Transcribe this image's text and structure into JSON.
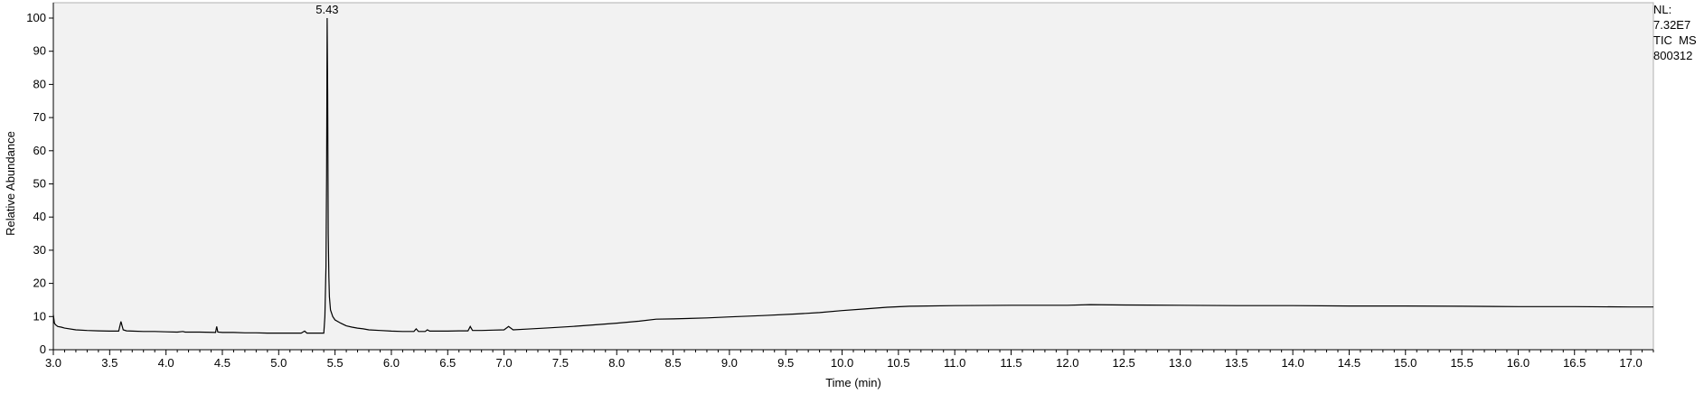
{
  "chart_data": {
    "type": "line",
    "title": "",
    "xlabel": "Time (min)",
    "ylabel": "Relative Abundance",
    "xlim": [
      3.0,
      17.2
    ],
    "ylim": [
      0,
      100
    ],
    "x_ticks": [
      "3.0",
      "3.5",
      "4.0",
      "4.5",
      "5.0",
      "5.5",
      "6.0",
      "6.5",
      "7.0",
      "7.5",
      "8.0",
      "8.5",
      "9.0",
      "9.5",
      "10.0",
      "10.5",
      "11.0",
      "11.5",
      "12.0",
      "12.5",
      "13.0",
      "13.5",
      "14.0",
      "14.5",
      "15.0",
      "15.5",
      "16.0",
      "16.5",
      "17.0"
    ],
    "y_ticks": [
      "0",
      "10",
      "20",
      "30",
      "40",
      "50",
      "60",
      "70",
      "80",
      "90",
      "100"
    ],
    "grid": false,
    "legend": "none",
    "peak_label": "5.43",
    "line_color": "#000000",
    "plot_background": "#f2f2f2",
    "series": [
      {
        "x": [
          3.0,
          3.01,
          3.02,
          3.04,
          3.07,
          3.1,
          3.2,
          3.3,
          3.4,
          3.5,
          3.58,
          3.6,
          3.62,
          3.65,
          3.7,
          3.8,
          3.9,
          4.0,
          4.1,
          4.15,
          4.17,
          4.3,
          4.44,
          4.45,
          4.46,
          4.5,
          4.6,
          4.7,
          4.8,
          4.9,
          5.0,
          5.1,
          5.2,
          5.23,
          5.25,
          5.3,
          5.35,
          5.4,
          5.41,
          5.42,
          5.425,
          5.43,
          5.435,
          5.44,
          5.445,
          5.45,
          5.46,
          5.48,
          5.5,
          5.55,
          5.6,
          5.65,
          5.7,
          5.75,
          5.8,
          5.9,
          6.0,
          6.1,
          6.2,
          6.22,
          6.24,
          6.3,
          6.32,
          6.34,
          6.4,
          6.5,
          6.6,
          6.68,
          6.7,
          6.72,
          6.8,
          6.9,
          7.0,
          7.04,
          7.08,
          7.2,
          7.4,
          7.6,
          7.8,
          8.0,
          8.2,
          8.35,
          8.5,
          8.8,
          9.0,
          9.3,
          9.6,
          9.8,
          10.0,
          10.2,
          10.4,
          10.6,
          11.0,
          11.5,
          12.0,
          12.2,
          12.5,
          13.0,
          13.5,
          14.0,
          14.5,
          15.0,
          15.5,
          16.0,
          16.5,
          17.0,
          17.2
        ],
        "y": [
          10.5,
          8.0,
          7.5,
          7.0,
          6.8,
          6.5,
          6.0,
          5.8,
          5.7,
          5.6,
          5.6,
          8.5,
          6.0,
          5.7,
          5.6,
          5.5,
          5.5,
          5.4,
          5.3,
          5.5,
          5.3,
          5.3,
          5.2,
          7.0,
          5.3,
          5.2,
          5.2,
          5.1,
          5.1,
          5.0,
          5.0,
          5.0,
          5.0,
          5.6,
          5.0,
          5.0,
          5.0,
          5.0,
          10.0,
          25.0,
          53.0,
          100.0,
          77.0,
          35.0,
          22.0,
          16.0,
          12.0,
          10.0,
          9.0,
          8.0,
          7.2,
          6.8,
          6.5,
          6.3,
          6.0,
          5.8,
          5.6,
          5.5,
          5.5,
          6.3,
          5.5,
          5.5,
          6.0,
          5.6,
          5.6,
          5.6,
          5.7,
          5.7,
          7.0,
          5.8,
          5.8,
          5.9,
          6.0,
          7.0,
          6.0,
          6.2,
          6.6,
          7.0,
          7.5,
          8.0,
          8.6,
          9.2,
          9.3,
          9.6,
          9.9,
          10.3,
          10.8,
          11.2,
          11.8,
          12.3,
          12.8,
          13.1,
          13.3,
          13.4,
          13.4,
          13.6,
          13.5,
          13.4,
          13.3,
          13.3,
          13.2,
          13.2,
          13.1,
          13.0,
          13.0,
          12.9,
          12.9
        ]
      }
    ]
  },
  "nl_box": {
    "line1": "NL:",
    "line2": "7.32E7",
    "line3": "TIC  MS",
    "line4": "800312"
  }
}
